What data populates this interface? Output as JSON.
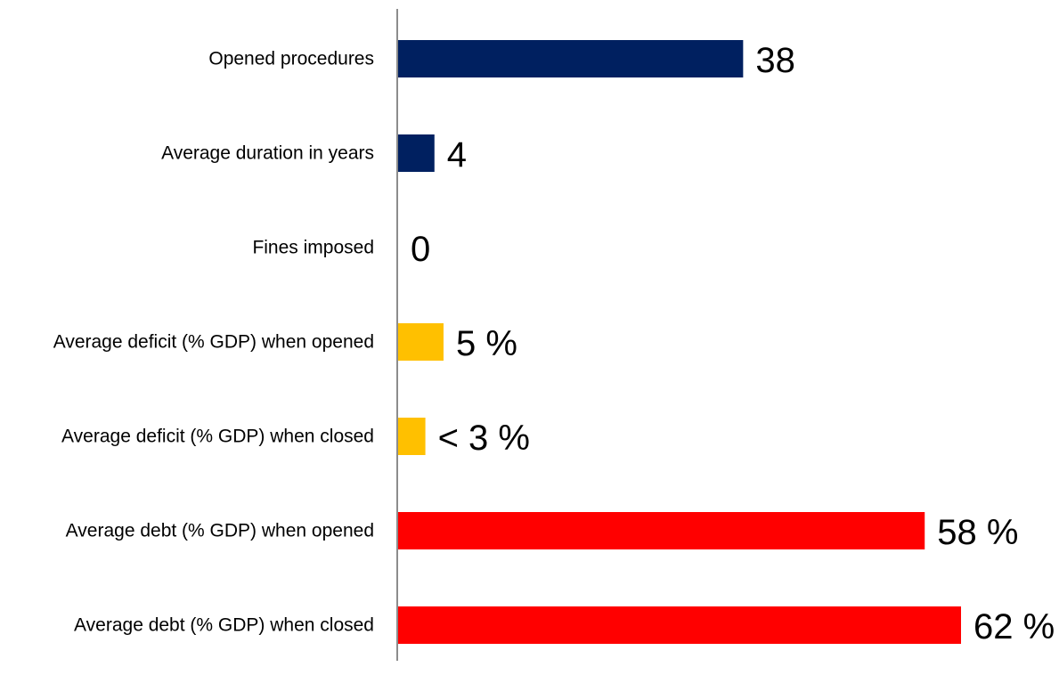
{
  "chart_data": {
    "type": "bar",
    "orientation": "horizontal",
    "title": "",
    "xlabel": "",
    "ylabel": "",
    "grid": false,
    "legend": "none",
    "categories": [
      "Opened procedures",
      "Average duration in years",
      "Fines imposed",
      "Average deficit (% GDP) when opened",
      "Average deficit (% GDP) when closed",
      "Average debt (% GDP) when opened",
      "Average debt (% GDP) when closed"
    ],
    "values": [
      38,
      4,
      0,
      5,
      3,
      58,
      62
    ],
    "value_labels": [
      "38",
      "4",
      "0",
      "5 %",
      "< 3 %",
      "58 %",
      "62 %"
    ],
    "colors": [
      "#002060",
      "#002060",
      "#002060",
      "#FFC000",
      "#FFC000",
      "#FF0000",
      "#FF0000"
    ],
    "xlim": [
      0,
      62
    ]
  }
}
